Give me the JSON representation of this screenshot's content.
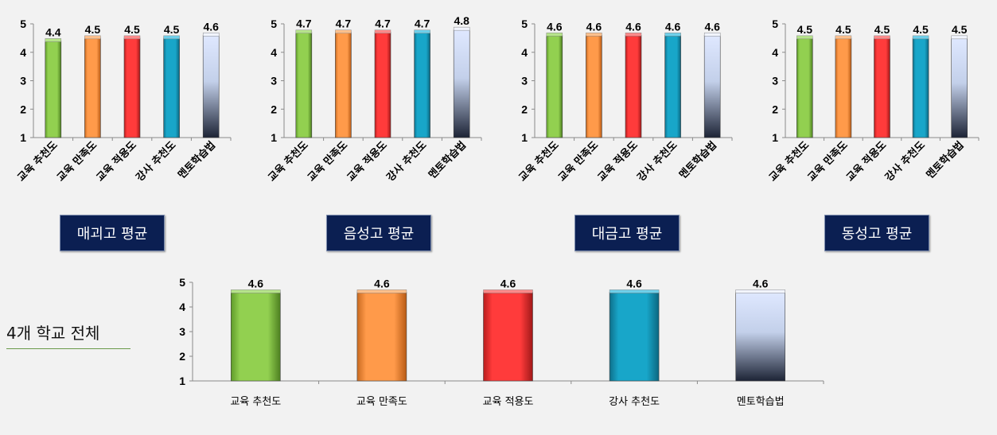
{
  "colors": [
    "#92d050",
    "#ff9a4a",
    "#ff3b3b",
    "#18a6c9",
    "navy-white-gradient"
  ],
  "chart_data": [
    {
      "type": "bar",
      "title": "매괴고 평균",
      "categories": [
        "교육 추천도",
        "교육 만족도",
        "교육 적용도",
        "강사 추천도",
        "멘토학습법"
      ],
      "values": [
        4.4,
        4.5,
        4.5,
        4.5,
        4.6
      ],
      "value_labels": [
        "4.4",
        "4.5",
        "4.5",
        "4.5",
        "4.6"
      ],
      "ylim": [
        1,
        5
      ],
      "yticks": [
        "1",
        "2",
        "3",
        "4",
        "5"
      ],
      "grid": false
    },
    {
      "type": "bar",
      "title": "음성고 평균",
      "categories": [
        "교육 추천도",
        "교육 만족도",
        "교육 적용도",
        "강사 추천도",
        "멘토학습법"
      ],
      "values": [
        4.7,
        4.7,
        4.7,
        4.7,
        4.8
      ],
      "value_labels": [
        "4.7",
        "4.7",
        "4.7",
        "4.7",
        "4.8"
      ],
      "ylim": [
        1,
        5
      ],
      "yticks": [
        "1",
        "2",
        "3",
        "4",
        "5"
      ],
      "grid": false
    },
    {
      "type": "bar",
      "title": "대금고 평균",
      "categories": [
        "교육 추천도",
        "교육 만족도",
        "교육 적용도",
        "강사 추천도",
        "멘토학습법"
      ],
      "values": [
        4.6,
        4.6,
        4.6,
        4.6,
        4.6
      ],
      "value_labels": [
        "4.6",
        "4.6",
        "4.6",
        "4.6",
        "4.6"
      ],
      "ylim": [
        1,
        5
      ],
      "yticks": [
        "1",
        "2",
        "3",
        "4",
        "5"
      ],
      "grid": false
    },
    {
      "type": "bar",
      "title": "동성고 평균",
      "categories": [
        "교육 추천도",
        "교육 만족도",
        "교육 적용도",
        "강사 추천도",
        "멘토학습법"
      ],
      "values": [
        4.5,
        4.5,
        4.5,
        4.5,
        4.5
      ],
      "value_labels": [
        "4.5",
        "4.5",
        "4.5",
        "4.5",
        "4.5"
      ],
      "ylim": [
        1,
        5
      ],
      "yticks": [
        "1",
        "2",
        "3",
        "4",
        "5"
      ],
      "grid": false
    },
    {
      "type": "bar",
      "title": "4개 학교 전체",
      "categories": [
        "교육 추천도",
        "교육 만족도",
        "교육 적용도",
        "강사 추천도",
        "멘토학습법"
      ],
      "values": [
        4.6,
        4.6,
        4.6,
        4.6,
        4.6
      ],
      "value_labels": [
        "4.6",
        "4.6",
        "4.6",
        "4.6",
        "4.6"
      ],
      "ylim": [
        1,
        5
      ],
      "yticks": [
        "1",
        "2",
        "3",
        "4",
        "5"
      ],
      "grid": false
    }
  ]
}
